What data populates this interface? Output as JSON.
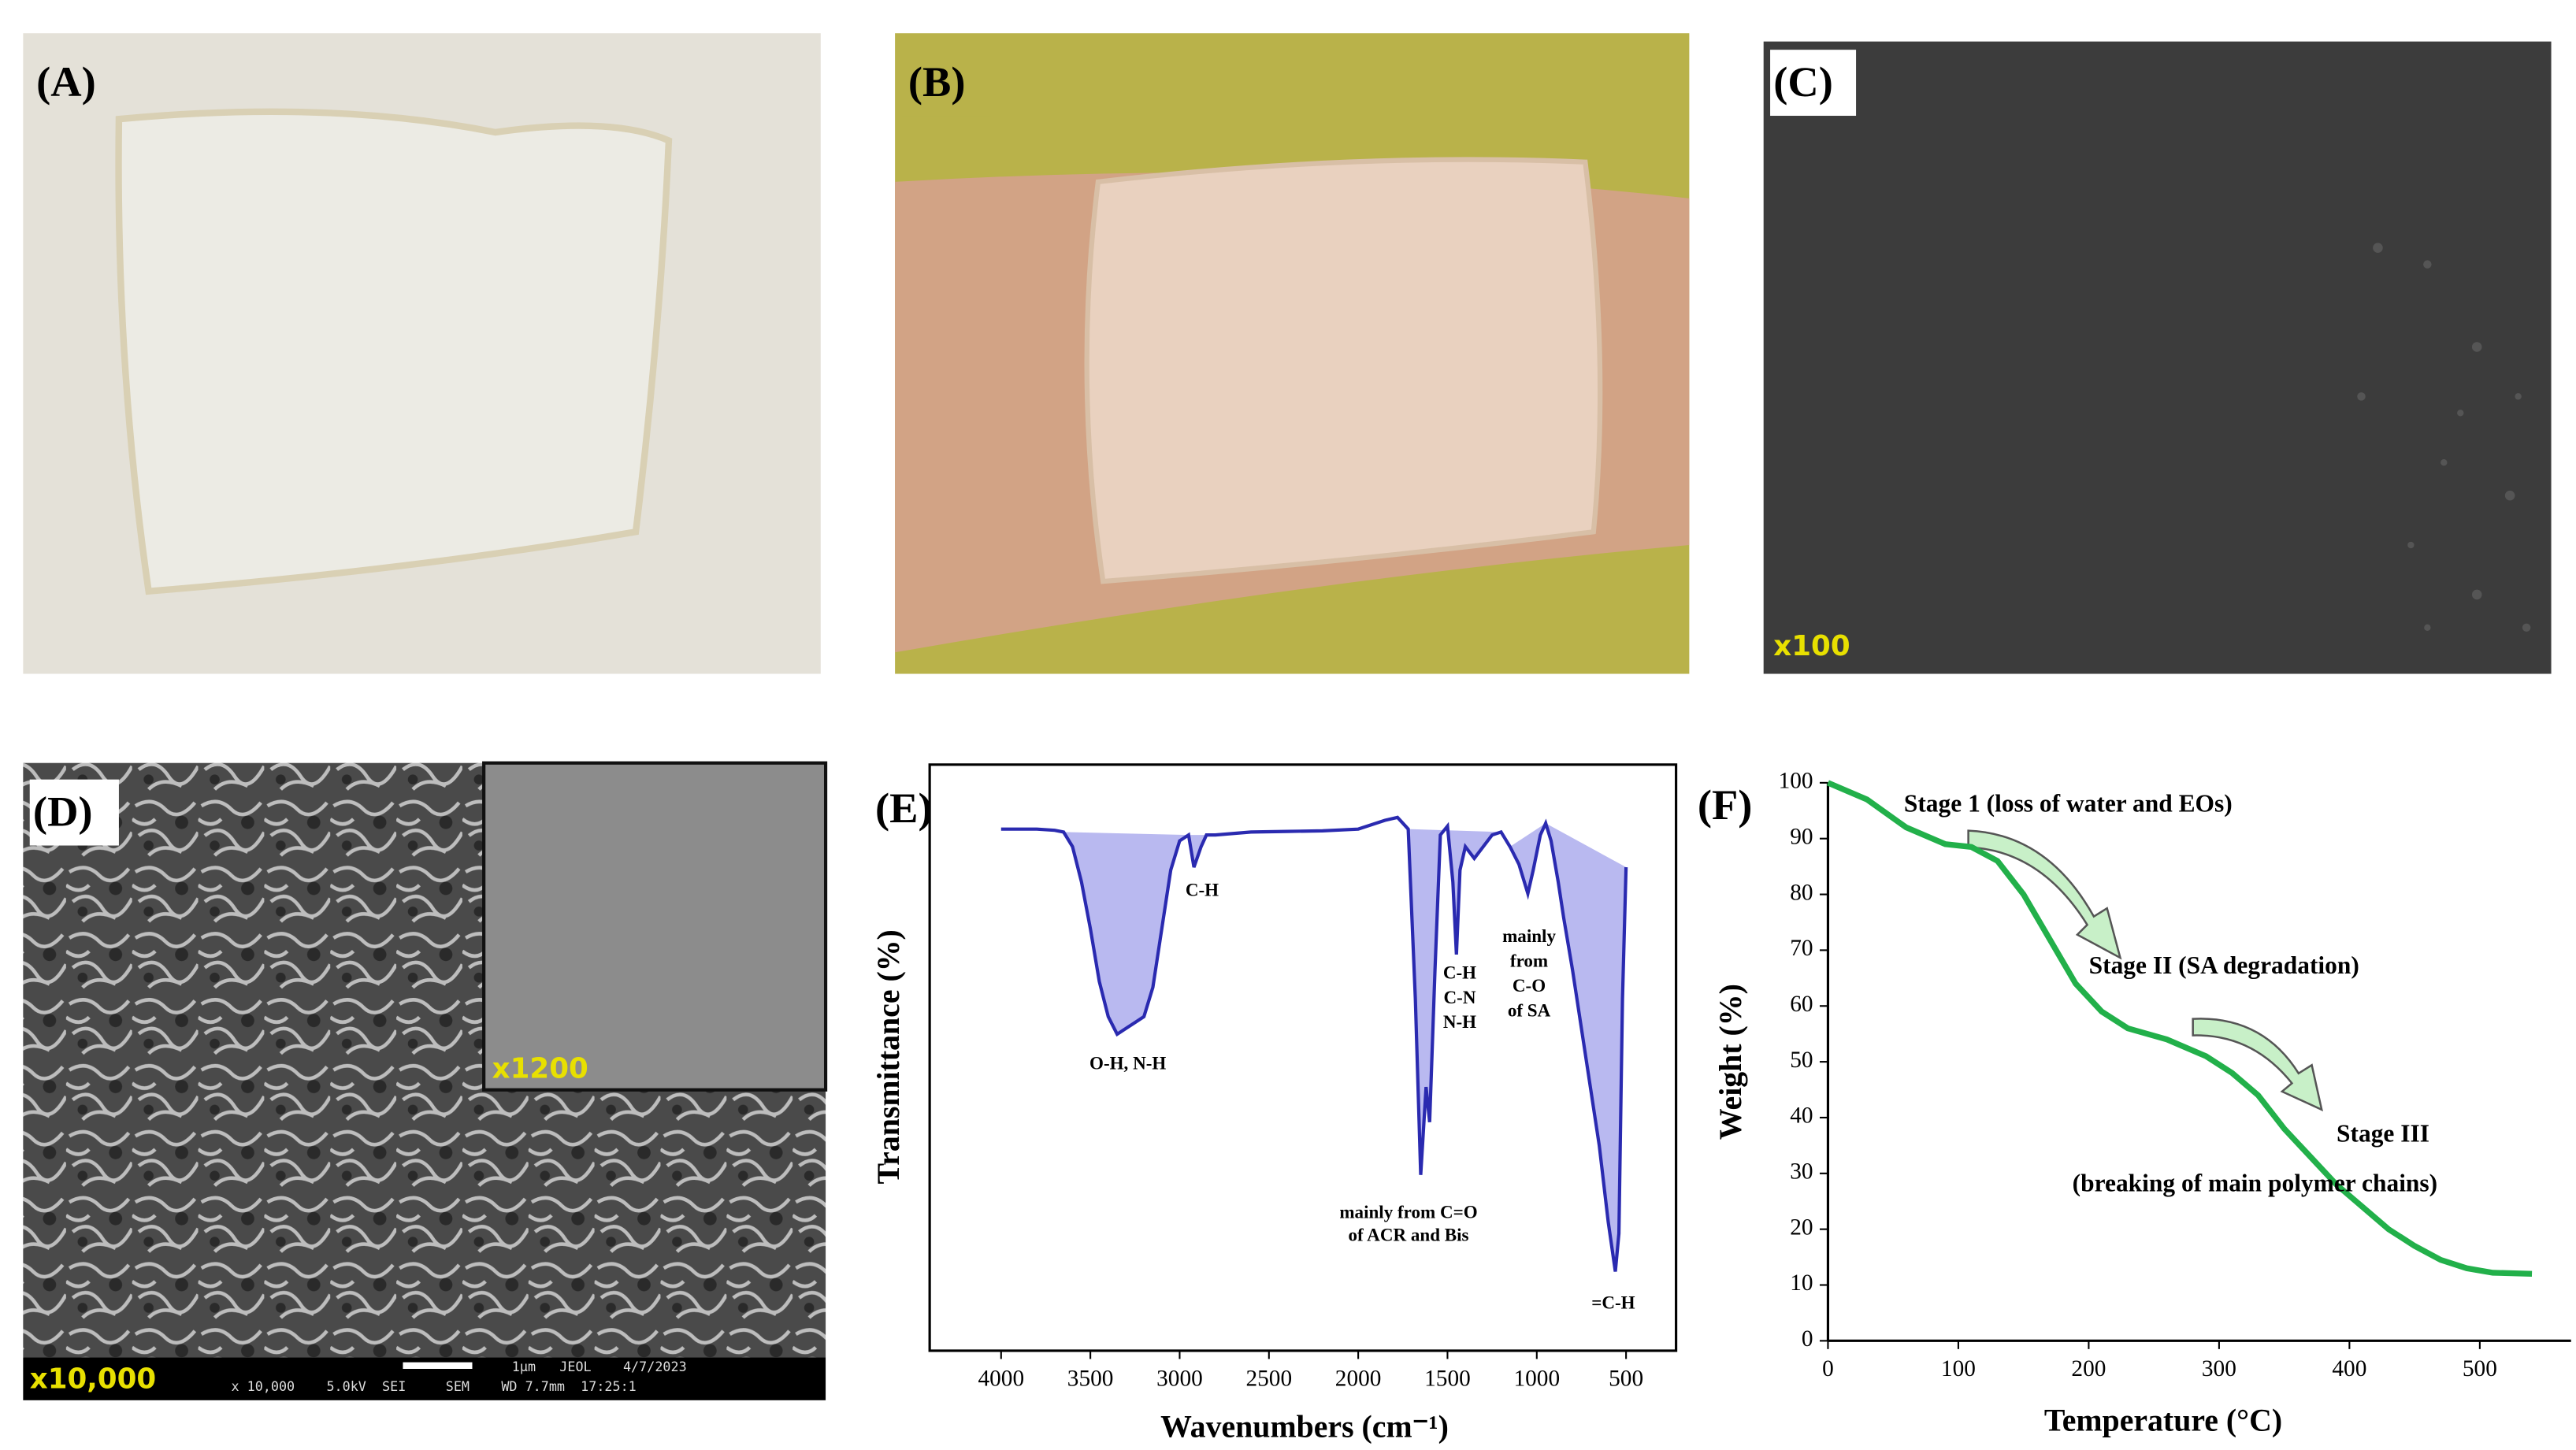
{
  "panels": {
    "a": "(A)",
    "b": "(B)",
    "c": "(C)",
    "c_mag": "x100",
    "d": "(D)",
    "d_mag": "x10,000",
    "d_inset_mag": "x1200",
    "d_info_top": "1μm   JEOL    4/7/2023",
    "d_info_bottom": "x 10,000    5.0kV  SEI     SEM    WD 7.7mm  17:25:1"
  },
  "chart_data": [
    {
      "type": "line",
      "panel_label": "(E)",
      "x_label": "Wavenumbers (cm⁻¹)",
      "y_label": "Transmittance (%)",
      "x": [
        4000,
        3800,
        3700,
        3650,
        3600,
        3550,
        3500,
        3450,
        3400,
        3350,
        3300,
        3250,
        3200,
        3150,
        3100,
        3050,
        3000,
        2950,
        2920,
        2880,
        2850,
        2800,
        2600,
        2400,
        2200,
        2000,
        1850,
        1780,
        1720,
        1680,
        1650,
        1620,
        1600,
        1570,
        1540,
        1500,
        1470,
        1450,
        1430,
        1400,
        1350,
        1300,
        1250,
        1200,
        1150,
        1100,
        1050,
        1020,
        980,
        950,
        920,
        880,
        850,
        800,
        750,
        700,
        650,
        600,
        560,
        540,
        520,
        500
      ],
      "series": [
        {
          "color": "#2a2ab0",
          "values": [
            89,
            89,
            88.8,
            88.5,
            86,
            80,
            72,
            63,
            57,
            54,
            55,
            56,
            57,
            62,
            72,
            82,
            87,
            88,
            82.5,
            86,
            88,
            88,
            88.5,
            88.6,
            88.7,
            89,
            90.5,
            91,
            89,
            60,
            30,
            45,
            39,
            65,
            88,
            89.5,
            80,
            67.6,
            82,
            86,
            84,
            86,
            88,
            88.5,
            86,
            83,
            78,
            82,
            88,
            90,
            87,
            80,
            74,
            65,
            55,
            45,
            35,
            22,
            13.5,
            20,
            60,
            82.5
          ]
        }
      ],
      "shaded_ranges": [
        [
          3650,
          2950
        ],
        [
          2950,
          2850
        ],
        [
          1720,
          1200
        ],
        [
          1150,
          950
        ],
        [
          950,
          500
        ]
      ],
      "shade_color": "#b9b9f0",
      "xlim": [
        4400,
        220
      ],
      "ylim": [
        0,
        100
      ],
      "xticks": [
        4000,
        3500,
        3000,
        2500,
        2000,
        1500,
        1000,
        500
      ],
      "annotations": [
        "C-H",
        "O-H, N-H",
        "mainly from C=O",
        "of ACR and Bis",
        "C-H",
        "C-N",
        "N-H",
        "mainly",
        "from",
        "C-O",
        "of SA",
        "=C-H"
      ]
    },
    {
      "type": "line",
      "panel_label": "(F)",
      "x_label": "Temperature (°C)",
      "y_label": "Weight (%)",
      "x": [
        0,
        30,
        60,
        90,
        110,
        130,
        150,
        170,
        190,
        210,
        230,
        260,
        290,
        310,
        330,
        350,
        370,
        390,
        410,
        430,
        450,
        470,
        490,
        510,
        540
      ],
      "series": [
        {
          "color": "#22b04a",
          "values": [
            100,
            97,
            92,
            89,
            88.5,
            86,
            80,
            72,
            64,
            59,
            56,
            54,
            51,
            48,
            44,
            38,
            33,
            28,
            24,
            20,
            17,
            14.5,
            13,
            12.2,
            12
          ]
        }
      ],
      "xlim": [
        0,
        570
      ],
      "ylim": [
        0,
        100
      ],
      "xticks": [
        0,
        100,
        200,
        300,
        400,
        500
      ],
      "yticks": [
        0,
        10,
        20,
        30,
        40,
        50,
        60,
        70,
        80,
        90,
        100
      ],
      "annotations": [
        "Stage 1  (loss of water and EOs)",
        "Stage II (SA degradation)",
        "Stage III",
        "(breaking of main polymer chains)"
      ]
    }
  ]
}
